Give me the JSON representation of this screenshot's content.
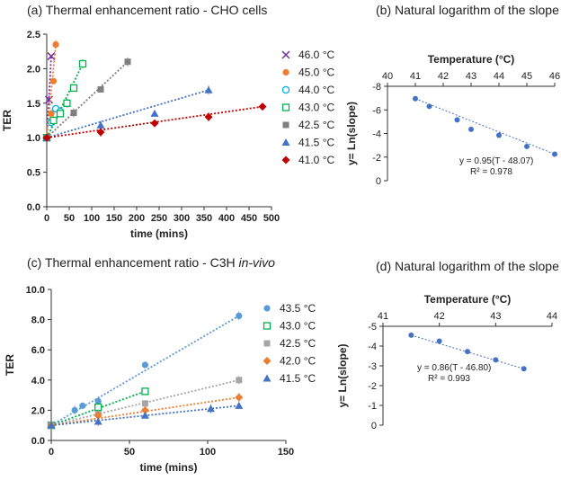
{
  "chart_data": [
    {
      "type": "scatter",
      "title": "(a) Thermal enhancement ratio - CHO cells",
      "xlabel": "time (mins)",
      "ylabel": "TER",
      "xlim": [
        0,
        500
      ],
      "ylim": [
        0,
        2.5
      ],
      "xticks": [
        "0",
        "50",
        "100",
        "150",
        "200",
        "250",
        "300",
        "350",
        "400",
        "450",
        "500"
      ],
      "yticks": [
        "0.0",
        "0.5",
        "1.0",
        "1.5",
        "2.0",
        "2.5"
      ],
      "series": [
        {
          "name": "46.0 °C",
          "color": "#7030a0",
          "marker": "x",
          "x": [
            0,
            5,
            10
          ],
          "y": [
            1.0,
            1.55,
            2.18
          ]
        },
        {
          "name": "45.0 °C",
          "color": "#ed7d31",
          "marker": "circle",
          "x": [
            0,
            10,
            15,
            20
          ],
          "y": [
            1.0,
            1.35,
            1.82,
            2.35
          ]
        },
        {
          "name": "44.0 °C",
          "color": "#00b0f0",
          "marker": "circle-open",
          "x": [
            0,
            10,
            20,
            30
          ],
          "y": [
            1.0,
            1.22,
            1.42,
            1.38
          ]
        },
        {
          "name": "43.0 °C",
          "color": "#00b050",
          "marker": "square-open",
          "x": [
            0,
            15,
            30,
            45,
            60,
            80
          ],
          "y": [
            1.0,
            1.25,
            1.35,
            1.5,
            1.72,
            2.07
          ]
        },
        {
          "name": "42.5 °C",
          "color": "#7f7f7f",
          "marker": "square",
          "x": [
            0,
            60,
            120,
            180
          ],
          "y": [
            1.0,
            1.36,
            1.7,
            2.1
          ]
        },
        {
          "name": "41.5 °C",
          "color": "#4472c4",
          "marker": "triangle",
          "x": [
            0,
            120,
            240,
            360
          ],
          "y": [
            1.0,
            1.18,
            1.35,
            1.69
          ]
        },
        {
          "name": "41.0 °C",
          "color": "#c00000",
          "marker": "diamond",
          "x": [
            0,
            120,
            240,
            360,
            480
          ],
          "y": [
            1.0,
            1.08,
            1.21,
            1.3,
            1.45
          ]
        }
      ]
    },
    {
      "type": "scatter",
      "title": "(b) Natural logarithm of the slope",
      "xlabel": "Temperature (°C)",
      "ylabel": "y= Ln(slope)",
      "xlim": [
        40,
        46
      ],
      "ylim": [
        -8,
        0
      ],
      "xticks": [
        "40",
        "41",
        "42",
        "43",
        "44",
        "45",
        "46"
      ],
      "yticks": [
        "0",
        "-2",
        "-4",
        "-6",
        "-8"
      ],
      "equation": "y = 0.95(T - 48.07)",
      "r2": "R² = 0.978",
      "series": [
        {
          "name": "ln slope",
          "color": "#4472c4",
          "x": [
            41,
            41.5,
            42.5,
            43,
            44,
            45,
            46
          ],
          "y": [
            -6.95,
            -6.3,
            -5.15,
            -4.35,
            -3.85,
            -2.9,
            -2.25
          ]
        }
      ]
    },
    {
      "type": "scatter",
      "title": "(c) Thermal enhancement ratio - C3H in-vivo",
      "xlabel": "time (mins)",
      "ylabel": "TER",
      "xlim": [
        0,
        150
      ],
      "ylim": [
        0,
        10
      ],
      "xticks": [
        "0",
        "50",
        "100",
        "150"
      ],
      "yticks": [
        "0.0",
        "2.0",
        "4.0",
        "6.0",
        "8.0",
        "10.0"
      ],
      "series": [
        {
          "name": "43.5 °C",
          "color": "#5b9bd5",
          "marker": "circle",
          "x": [
            0,
            15,
            20,
            30,
            60,
            120
          ],
          "y": [
            1.0,
            2.0,
            2.3,
            2.6,
            5.0,
            8.25
          ]
        },
        {
          "name": "43.0 °C",
          "color": "#00b050",
          "marker": "square-open",
          "x": [
            0,
            30,
            60
          ],
          "y": [
            1.0,
            2.2,
            3.25
          ]
        },
        {
          "name": "42.5 °C",
          "color": "#a5a5a5",
          "marker": "square",
          "x": [
            0,
            30,
            60,
            120
          ],
          "y": [
            1.0,
            1.75,
            2.45,
            4.0
          ]
        },
        {
          "name": "42.0 °C",
          "color": "#ed7d31",
          "marker": "diamond",
          "x": [
            0,
            30,
            60,
            120
          ],
          "y": [
            1.0,
            1.65,
            2.0,
            2.85
          ]
        },
        {
          "name": "41.5 °C",
          "color": "#4472c4",
          "marker": "triangle",
          "x": [
            0,
            30,
            60,
            102,
            120
          ],
          "y": [
            1.0,
            1.25,
            1.65,
            2.1,
            2.3
          ]
        }
      ]
    },
    {
      "type": "scatter",
      "title": "(d) Natural logarithm of the slope",
      "xlabel": "Temperature (°C)",
      "ylabel": "y= Ln(slope)",
      "xlim": [
        41,
        44
      ],
      "ylim": [
        -5,
        0
      ],
      "xticks": [
        "41",
        "42",
        "43",
        "44"
      ],
      "yticks": [
        "0",
        "-1",
        "-2",
        "-3",
        "-4",
        "-5"
      ],
      "equation": "y = 0.86(T - 46.80)",
      "r2": "R² = 0.993",
      "series": [
        {
          "name": "ln slope",
          "color": "#4472c4",
          "x": [
            41.5,
            42,
            42.5,
            43,
            43.5
          ],
          "y": [
            -4.55,
            -4.25,
            -3.72,
            -3.3,
            -2.85
          ]
        }
      ]
    }
  ]
}
